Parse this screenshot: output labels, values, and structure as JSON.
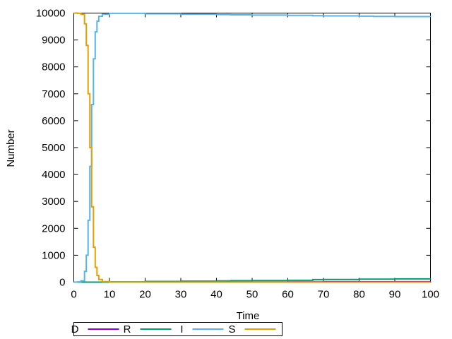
{
  "chart_data": {
    "type": "line",
    "title": "",
    "xlabel": "Time",
    "ylabel": "Number",
    "xlim": [
      0,
      100
    ],
    "ylim": [
      0,
      10000
    ],
    "xticks": [
      0,
      10,
      20,
      30,
      40,
      50,
      60,
      70,
      80,
      90,
      100
    ],
    "yticks": [
      0,
      1000,
      2000,
      3000,
      4000,
      5000,
      6000,
      7000,
      8000,
      9000,
      10000
    ],
    "grid": false,
    "legend_position": "bottom-left-outside",
    "series": [
      {
        "name": "D",
        "color": "#9400d3",
        "points": [
          [
            0,
            0
          ],
          [
            10,
            0
          ],
          [
            20,
            2
          ],
          [
            30,
            4
          ],
          [
            40,
            6
          ],
          [
            50,
            8
          ],
          [
            60,
            10
          ],
          [
            70,
            12
          ],
          [
            80,
            14
          ],
          [
            90,
            16
          ],
          [
            100,
            18
          ]
        ]
      },
      {
        "name": "R",
        "color": "#009e73",
        "points": [
          [
            0,
            0
          ],
          [
            5,
            0
          ],
          [
            10,
            10
          ],
          [
            20,
            25
          ],
          [
            30,
            35
          ],
          [
            40,
            45
          ],
          [
            44,
            55
          ],
          [
            50,
            60
          ],
          [
            60,
            70
          ],
          [
            67,
            95
          ],
          [
            70,
            100
          ],
          [
            80,
            110
          ],
          [
            90,
            120
          ],
          [
            100,
            130
          ]
        ]
      },
      {
        "name": "I",
        "color": "#56b4e9",
        "points": [
          [
            0,
            0
          ],
          [
            1,
            10
          ],
          [
            2,
            50
          ],
          [
            3,
            400
          ],
          [
            3.5,
            1000
          ],
          [
            4,
            2300
          ],
          [
            4.5,
            4300
          ],
          [
            5,
            6600
          ],
          [
            5.5,
            8300
          ],
          [
            6,
            9300
          ],
          [
            6.5,
            9700
          ],
          [
            7,
            9880
          ],
          [
            8,
            9960
          ],
          [
            10,
            9990
          ],
          [
            20,
            9975
          ],
          [
            30,
            9960
          ],
          [
            40,
            9945
          ],
          [
            44,
            9935
          ],
          [
            50,
            9925
          ],
          [
            60,
            9915
          ],
          [
            67,
            9900
          ],
          [
            70,
            9895
          ],
          [
            80,
            9885
          ],
          [
            84,
            9875
          ],
          [
            90,
            9870
          ],
          [
            100,
            9860
          ]
        ]
      },
      {
        "name": "S",
        "color": "#e69f00",
        "points": [
          [
            0,
            10000
          ],
          [
            1,
            9990
          ],
          [
            2,
            9950
          ],
          [
            3,
            9600
          ],
          [
            3.5,
            8800
          ],
          [
            4,
            7000
          ],
          [
            4.5,
            5000
          ],
          [
            5,
            2800
          ],
          [
            5.5,
            1300
          ],
          [
            6,
            550
          ],
          [
            6.5,
            250
          ],
          [
            7,
            100
          ],
          [
            8,
            20
          ],
          [
            10,
            0
          ],
          [
            20,
            0
          ],
          [
            100,
            0
          ]
        ]
      }
    ]
  }
}
